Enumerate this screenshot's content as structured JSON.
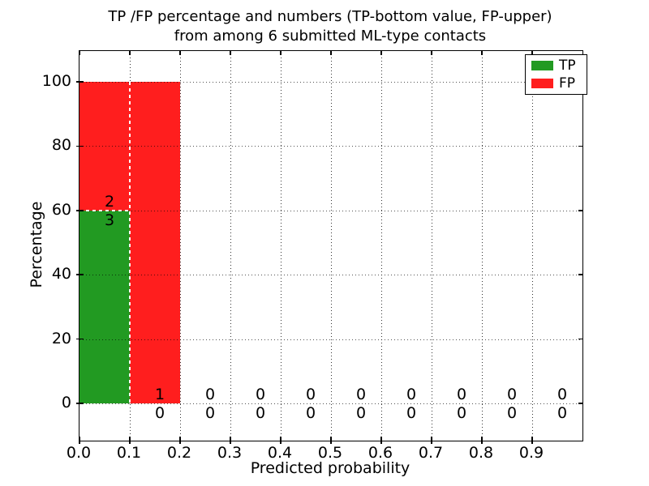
{
  "chart_data": {
    "type": "bar",
    "stacked": true,
    "title_lines": [
      "TP /FP percentage and numbers (TP-bottom value, FP-upper)",
      "from among 6 submitted ML-type contacts"
    ],
    "xlabel": "Predicted probability",
    "ylabel": "Percentage",
    "xlim": [
      0.0,
      1.0
    ],
    "ylim_view": [
      -11.6,
      109.6
    ],
    "grid": "dotted",
    "bin_width": 0.1,
    "bins": [
      0.0,
      0.1,
      0.2,
      0.3,
      0.4,
      0.5,
      0.6,
      0.7,
      0.8,
      0.9
    ],
    "x_tick_values": [
      0.0,
      0.1,
      0.2,
      0.3,
      0.4,
      0.5,
      0.6,
      0.7,
      0.8,
      0.9
    ],
    "x_tick_labels": [
      "0.0",
      "0.1",
      "0.2",
      "0.3",
      "0.4",
      "0.5",
      "0.6",
      "0.7",
      "0.8",
      "0.9"
    ],
    "y_tick_values": [
      0,
      20,
      40,
      60,
      80,
      100
    ],
    "y_tick_labels": [
      "0",
      "20",
      "40",
      "60",
      "80",
      "100"
    ],
    "series": [
      {
        "name": "TP",
        "color": "#229A22",
        "percent": [
          60,
          0,
          0,
          0,
          0,
          0,
          0,
          0,
          0,
          0
        ],
        "counts": [
          3,
          0,
          0,
          0,
          0,
          0,
          0,
          0,
          0,
          0
        ]
      },
      {
        "name": "FP",
        "color": "#FF1E1E",
        "percent": [
          40,
          100,
          0,
          0,
          0,
          0,
          0,
          0,
          0,
          0
        ],
        "counts": [
          2,
          1,
          0,
          0,
          0,
          0,
          0,
          0,
          0,
          0
        ]
      }
    ],
    "legend": {
      "position": "upper right",
      "entries": [
        {
          "label": "TP",
          "color": "#229A22"
        },
        {
          "label": "FP",
          "color": "#FF1E1E"
        }
      ]
    }
  }
}
